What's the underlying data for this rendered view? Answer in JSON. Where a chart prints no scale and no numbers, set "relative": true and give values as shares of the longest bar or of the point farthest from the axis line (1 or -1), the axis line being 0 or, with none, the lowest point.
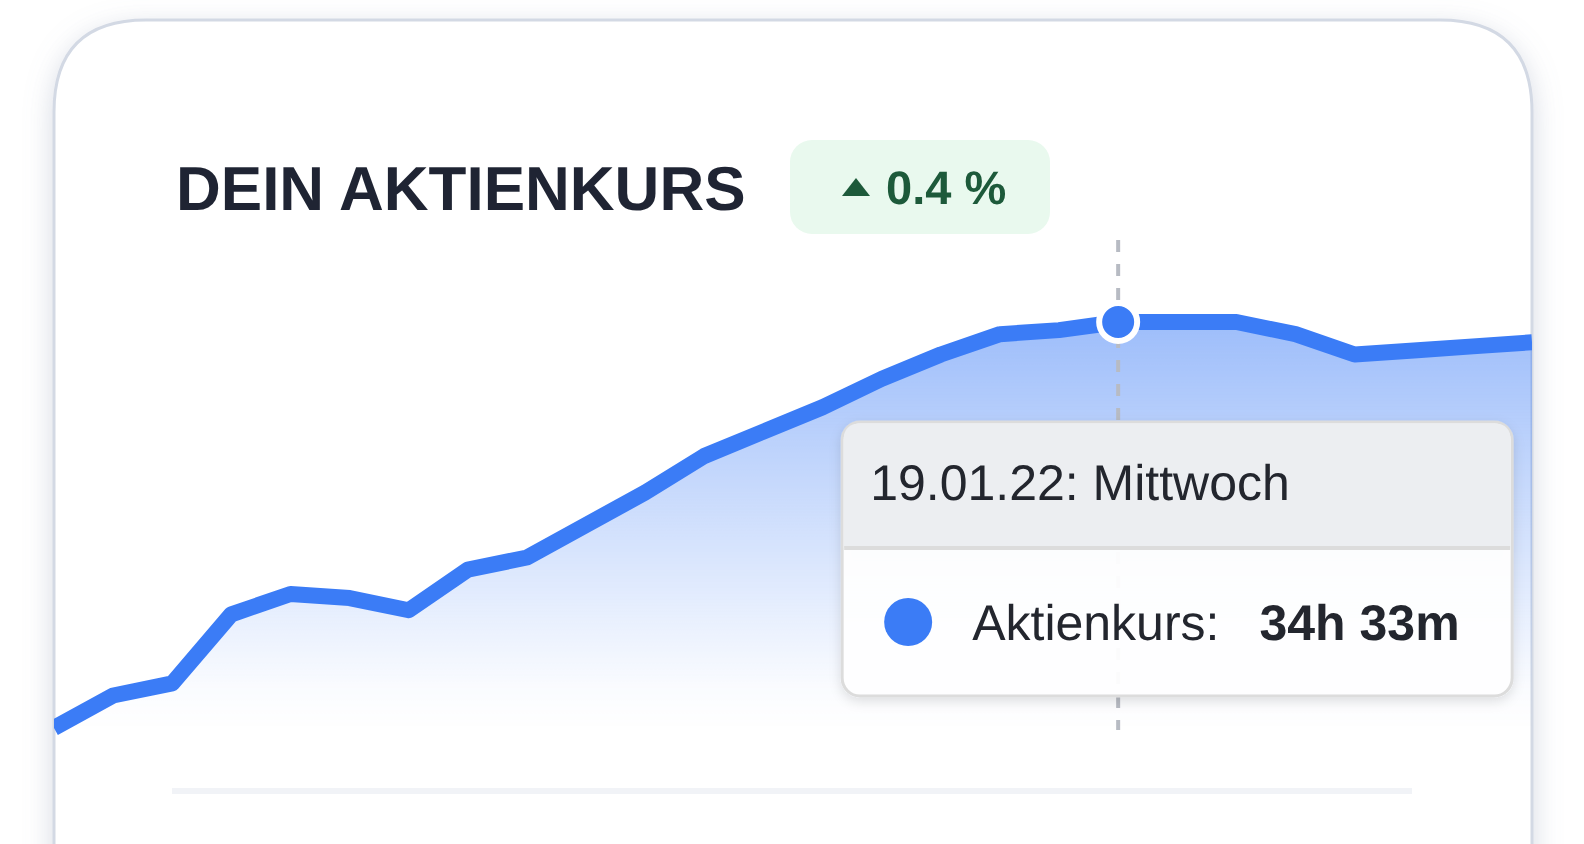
{
  "chart_data": {
    "type": "area",
    "title": "DEIN AKTIENKURS",
    "subtitle": "0.4 %",
    "annotations": [
      "19.01.22: Mittwoch",
      "34h 33m"
    ],
    "categories": [
      null,
      null,
      null,
      null,
      null,
      null,
      null,
      null,
      null,
      null,
      null,
      null,
      null,
      null,
      null,
      null,
      null,
      null,
      null,
      null,
      null,
      null,
      null,
      null,
      null,
      null
    ],
    "relative": true,
    "series": [
      {
        "name": "Aktienkurs:",
        "color": "#3b7cf6",
        "values": [
          0,
          0.08,
          0.11,
          0.28,
          0.33,
          0.32,
          0.29,
          0.39,
          0.42,
          0.5,
          0.58,
          0.67,
          0.73,
          0.79,
          0.86,
          0.92,
          0.97,
          0.98,
          1,
          1,
          1,
          0.97,
          0.92,
          0.93,
          0.94,
          0.95
        ]
      }
    ]
  }
}
